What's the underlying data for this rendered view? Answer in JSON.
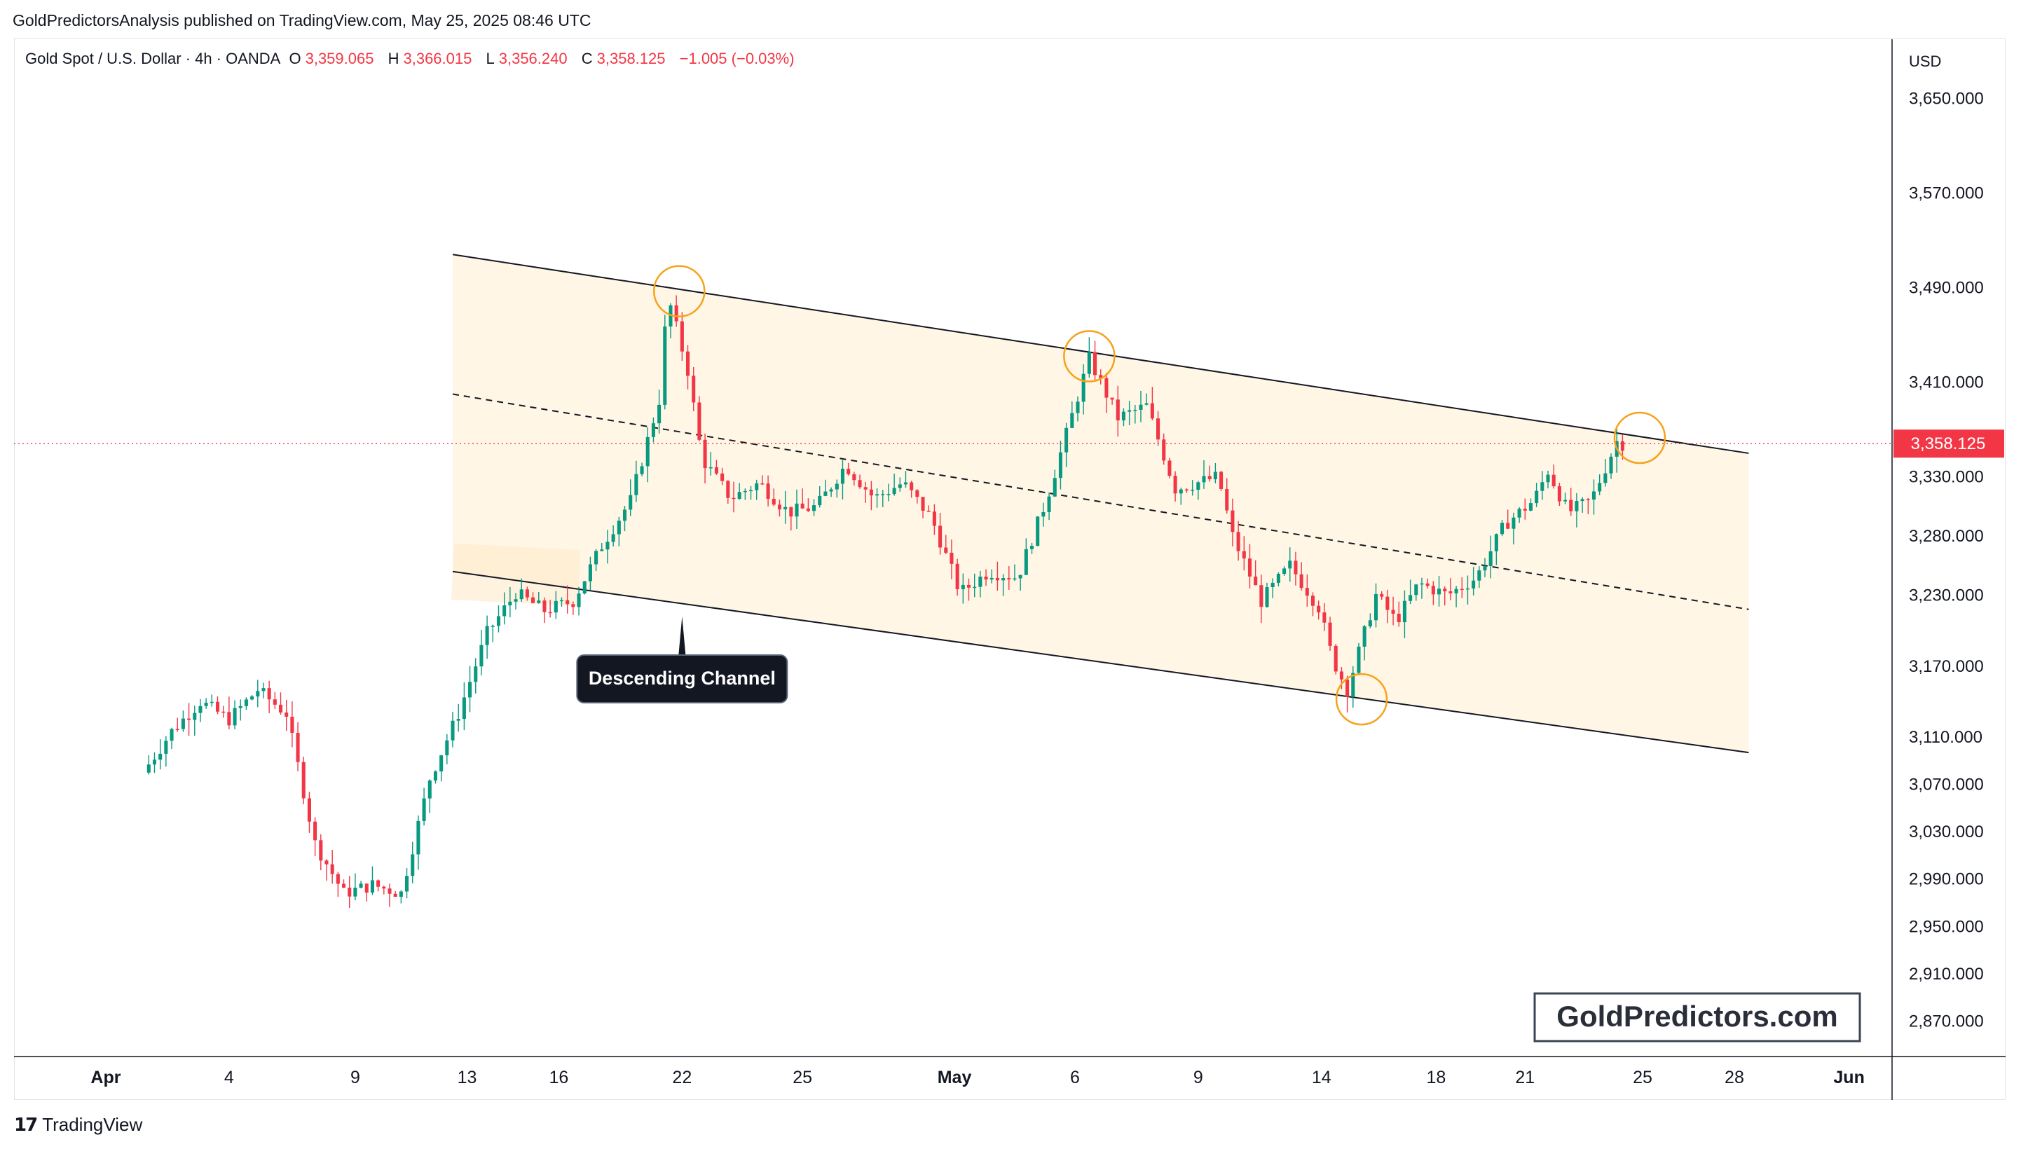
{
  "publisher_line": "GoldPredictorsAnalysis published on TradingView.com, May 25, 2025 08:46 UTC",
  "symbol": {
    "name": "Gold Spot / U.S. Dollar · 4h · OANDA",
    "o_label": "O",
    "o_value": "3,359.065",
    "h_label": "H",
    "h_value": "3,366.015",
    "l_label": "L",
    "l_value": "3,356.240",
    "c_label": "C",
    "c_value": "3,358.125",
    "change": "−1.005 (−0.03%)"
  },
  "footer": {
    "logo_icon": "tradingview-logo-icon",
    "label": "TradingView"
  },
  "watermark": "GoldPredictors.com",
  "colors": {
    "up": "#089981",
    "down": "#f23645",
    "highlight": "#f7a21b",
    "channel_fill": "#fff6e6",
    "price_tag": "#f23645"
  },
  "chart_data": {
    "type": "candlestick",
    "currency": "USD",
    "current_price_label": "3,358.125",
    "current_price": 3358.125,
    "ylim": [
      2840,
      3700
    ],
    "y_ticks": [
      3650,
      3570,
      3490,
      3410,
      3330,
      3280,
      3230,
      3170,
      3110,
      3070,
      3030,
      2990,
      2950,
      2910,
      2870
    ],
    "y_tick_labels": [
      "3,650.000",
      "3,570.000",
      "3,490.000",
      "3,410.000",
      "3,330.000",
      "3,280.000",
      "3,230.000",
      "3,170.000",
      "3,110.000",
      "3,070.000",
      "3,030.000",
      "2,990.000",
      "2,950.000",
      "2,910.000",
      "2,870.000"
    ],
    "x_ticks": [
      {
        "label": "Apr",
        "x": -1.3,
        "bold": true
      },
      {
        "label": "4",
        "x": 3
      },
      {
        "label": "9",
        "x": 7.4
      },
      {
        "label": "13",
        "x": 11.3
      },
      {
        "label": "16",
        "x": 14.5
      },
      {
        "label": "22",
        "x": 18.8
      },
      {
        "label": "25",
        "x": 23
      },
      {
        "label": "May",
        "x": 28.3,
        "bold": true
      },
      {
        "label": "6",
        "x": 32.5
      },
      {
        "label": "9",
        "x": 36.8
      },
      {
        "label": "14",
        "x": 41.1
      },
      {
        "label": "18",
        "x": 45.1
      },
      {
        "label": "21",
        "x": 48.2
      },
      {
        "label": "25",
        "x": 52.3
      },
      {
        "label": "28",
        "x": 55.5
      },
      {
        "label": "Jun",
        "x": 59.5,
        "bold": true
      }
    ],
    "x_range": [
      -4.5,
      61.0
    ],
    "candle_anchors": [
      [
        0,
        3080
      ],
      [
        1,
        3115
      ],
      [
        2,
        3140
      ],
      [
        3,
        3125
      ],
      [
        4,
        3150
      ],
      [
        5,
        3130
      ],
      [
        6,
        3020
      ],
      [
        7,
        2978
      ],
      [
        8,
        2985
      ],
      [
        9,
        2978
      ],
      [
        10,
        3075
      ],
      [
        11,
        3130
      ],
      [
        12,
        3198
      ],
      [
        13,
        3232
      ],
      [
        14,
        3217
      ],
      [
        15,
        3225
      ],
      [
        16,
        3272
      ],
      [
        17,
        3310
      ],
      [
        18,
        3395
      ],
      [
        18.3,
        3483
      ],
      [
        19,
        3420
      ],
      [
        19.5,
        3345
      ],
      [
        20.5,
        3312
      ],
      [
        21.5,
        3325
      ],
      [
        22.5,
        3300
      ],
      [
        23.5,
        3305
      ],
      [
        24.5,
        3340
      ],
      [
        25.5,
        3312
      ],
      [
        26.5,
        3325
      ],
      [
        27.5,
        3295
      ],
      [
        28.5,
        3232
      ],
      [
        29.5,
        3250
      ],
      [
        30.5,
        3245
      ],
      [
        31.5,
        3310
      ],
      [
        32.5,
        3390
      ],
      [
        33,
        3430
      ],
      [
        34,
        3380
      ],
      [
        35,
        3390
      ],
      [
        36,
        3320
      ],
      [
        37.5,
        3330
      ],
      [
        38,
        3280
      ],
      [
        39,
        3225
      ],
      [
        40,
        3255
      ],
      [
        41,
        3220
      ],
      [
        41.5,
        3175
      ],
      [
        42,
        3150
      ],
      [
        43,
        3230
      ],
      [
        43.7,
        3208
      ],
      [
        44.5,
        3240
      ],
      [
        45.5,
        3230
      ],
      [
        46.5,
        3245
      ],
      [
        47.5,
        3290
      ],
      [
        48.5,
        3310
      ],
      [
        49,
        3335
      ],
      [
        49.7,
        3300
      ],
      [
        50.5,
        3310
      ],
      [
        51.4,
        3360
      ],
      [
        51.6,
        3358
      ]
    ],
    "channel": {
      "start_x": 10.8,
      "end_x": 56.0,
      "upper": [
        3518,
        3350
      ],
      "mid": [
        3400,
        3218
      ],
      "lower": [
        3250,
        3097
      ]
    },
    "highlight_circles": [
      {
        "x": 18.7,
        "y": 3487
      },
      {
        "x": 33.0,
        "y": 3432
      },
      {
        "x": 42.5,
        "y": 3142
      },
      {
        "x": 52.2,
        "y": 3363
      }
    ],
    "annotation": {
      "text": "Descending Channel",
      "x": 18.8,
      "price_point": 3218
    }
  }
}
